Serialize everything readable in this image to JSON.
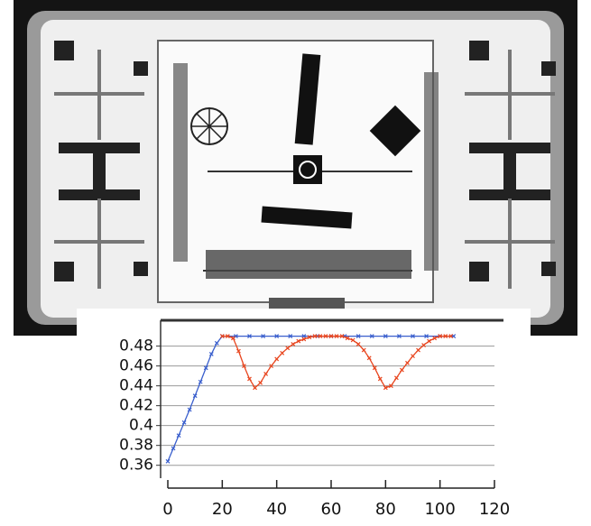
{
  "chart_data": {
    "type": "line",
    "series": [
      {
        "color": "#3a5fcd",
        "x": [
          0,
          2,
          4,
          6,
          8,
          10,
          12,
          14,
          16,
          18,
          20,
          25,
          30,
          35,
          40,
          45,
          50,
          55,
          60,
          65,
          70,
          75,
          80,
          85,
          90,
          95,
          100,
          105
        ],
        "values": [
          0.364,
          0.377,
          0.39,
          0.403,
          0.416,
          0.43,
          0.444,
          0.458,
          0.472,
          0.483,
          0.49,
          0.49,
          0.49,
          0.49,
          0.49,
          0.49,
          0.49,
          0.49,
          0.49,
          0.49,
          0.49,
          0.49,
          0.49,
          0.49,
          0.49,
          0.49,
          0.49,
          0.49
        ]
      },
      {
        "color": "#e8451e",
        "x": [
          20,
          22,
          24,
          26,
          28,
          30,
          32,
          34,
          36,
          38,
          40,
          42,
          44,
          46,
          48,
          50,
          52,
          54,
          56,
          58,
          60,
          62,
          64,
          66,
          68,
          70,
          72,
          74,
          76,
          78,
          80,
          82,
          84,
          86,
          88,
          90,
          92,
          94,
          96,
          98,
          100,
          102,
          104
        ],
        "values": [
          0.49,
          0.49,
          0.488,
          0.475,
          0.46,
          0.447,
          0.438,
          0.443,
          0.452,
          0.46,
          0.467,
          0.473,
          0.478,
          0.482,
          0.485,
          0.487,
          0.489,
          0.49,
          0.49,
          0.49,
          0.49,
          0.49,
          0.49,
          0.488,
          0.486,
          0.482,
          0.476,
          0.468,
          0.458,
          0.447,
          0.438,
          0.44,
          0.448,
          0.456,
          0.463,
          0.47,
          0.476,
          0.481,
          0.485,
          0.488,
          0.49,
          0.49,
          0.49
        ]
      }
    ],
    "xlim": [
      0,
      120
    ],
    "xticks": [
      0,
      20,
      40,
      60,
      80,
      100,
      120
    ],
    "ylim": [
      0.347,
      0.506
    ],
    "yticks": [
      0.36,
      0.38,
      0.4,
      0.42,
      0.44,
      0.46,
      0.48
    ],
    "grid": true
  }
}
